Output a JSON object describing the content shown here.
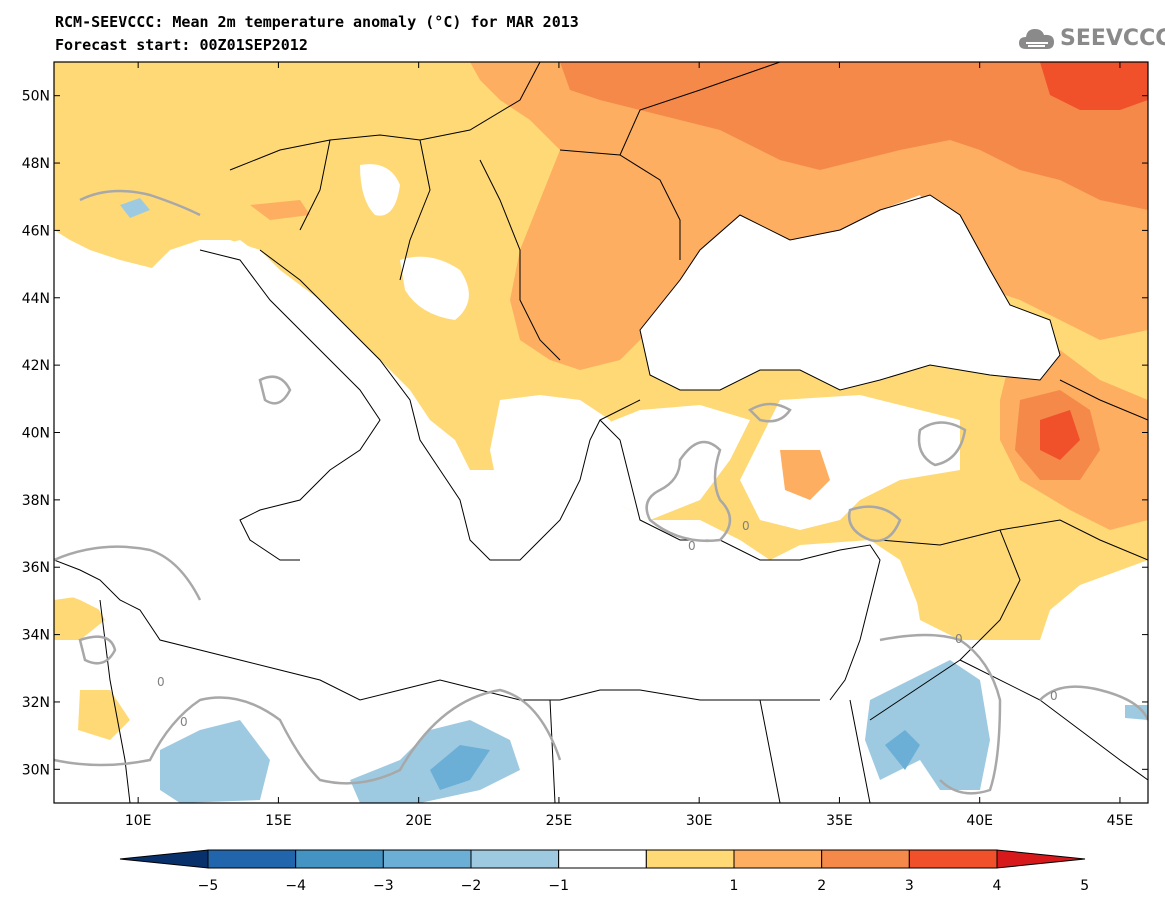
{
  "header": {
    "title": "RCM-SEEVCCC: Mean 2m temperature anomaly (°C) for MAR 2013",
    "subtitle": "Forecast start: 00Z01SEP2012"
  },
  "logo": {
    "text": "SEEVCCC",
    "icon": "cloud-logo-icon"
  },
  "map": {
    "lon_range": [
      7,
      46
    ],
    "lat_range": [
      29,
      51
    ],
    "lat_ticks": [
      "50N",
      "48N",
      "46N",
      "44N",
      "42N",
      "40N",
      "38N",
      "36N",
      "34N",
      "32N",
      "30N"
    ],
    "lon_ticks": [
      "10E",
      "15E",
      "20E",
      "25E",
      "30E",
      "35E",
      "40E",
      "45E"
    ],
    "contour_label": "0"
  },
  "colorbar": {
    "labels": [
      "−5",
      "−4",
      "−3",
      "−2",
      "−1",
      "1",
      "2",
      "3",
      "4",
      "5"
    ],
    "colors": [
      "#08306b",
      "#2166ac",
      "#4393c3",
      "#6baed6",
      "#9ecae1",
      "#ffffff",
      "#fed976",
      "#fdae61",
      "#f4894a",
      "#f0512a",
      "#d7191c"
    ]
  }
}
